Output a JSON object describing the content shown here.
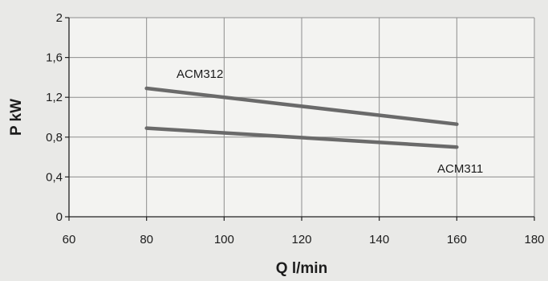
{
  "chart_data": {
    "type": "line",
    "title": "",
    "xlabel": "Q l/min",
    "ylabel": "P kW",
    "xlim": [
      60,
      180
    ],
    "ylim": [
      0,
      2
    ],
    "xticks": [
      60,
      80,
      100,
      120,
      140,
      160,
      180
    ],
    "xtick_labels": [
      "60",
      "80",
      "100",
      "120",
      "140",
      "160",
      "180"
    ],
    "yticks": [
      0,
      0.4,
      0.8,
      1.2,
      1.6,
      2
    ],
    "ytick_labels": [
      "0",
      "0,4",
      "0,8",
      "1,2",
      "1,6",
      "2"
    ],
    "grid": true,
    "legend": "none",
    "series": [
      {
        "name": "ACM312",
        "x": [
          80,
          160
        ],
        "y": [
          1.29,
          0.93
        ],
        "color": "#6a6a6a"
      },
      {
        "name": "ACM311",
        "x": [
          80,
          160
        ],
        "y": [
          0.89,
          0.7
        ],
        "color": "#6a6a6a"
      }
    ]
  }
}
